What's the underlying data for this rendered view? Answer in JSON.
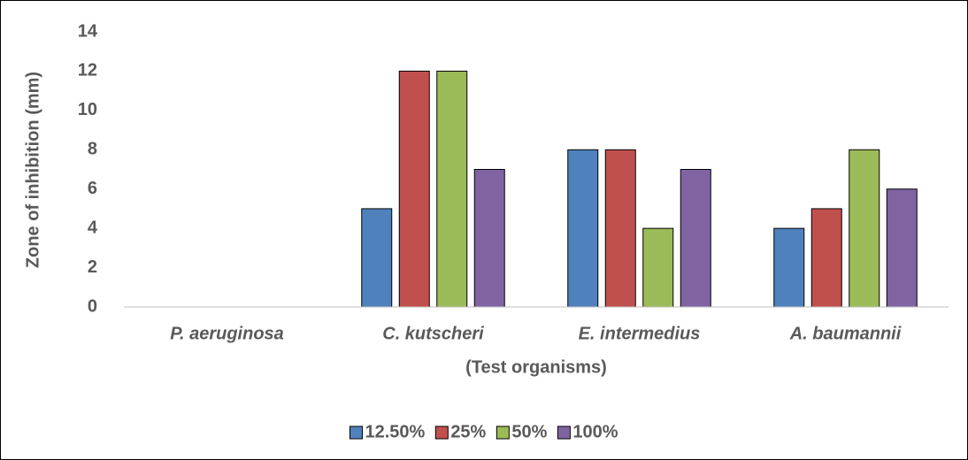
{
  "chart_data": {
    "type": "bar",
    "y_label": "Zone of inhibition (mm)",
    "x_label": "(Test organisms)",
    "categories": [
      "P. aeruginosa",
      "C. kutscheri",
      "E. intermedius",
      "A. baumannii"
    ],
    "series": [
      {
        "name": "12.50%",
        "color": "#4f81bd",
        "values": [
          0,
          5,
          8,
          4
        ]
      },
      {
        "name": "25%",
        "color": "#c0504d",
        "values": [
          0,
          12,
          8,
          5
        ]
      },
      {
        "name": "50%",
        "color": "#9bbb59",
        "values": [
          0,
          12,
          4,
          8
        ]
      },
      {
        "name": "100%",
        "color": "#8064a2",
        "values": [
          0,
          7,
          7,
          6
        ]
      }
    ],
    "ylim": [
      0,
      14
    ],
    "yticks": [
      0,
      2,
      4,
      6,
      8,
      10,
      12,
      14
    ],
    "grid": false,
    "legend": "bottom"
  }
}
